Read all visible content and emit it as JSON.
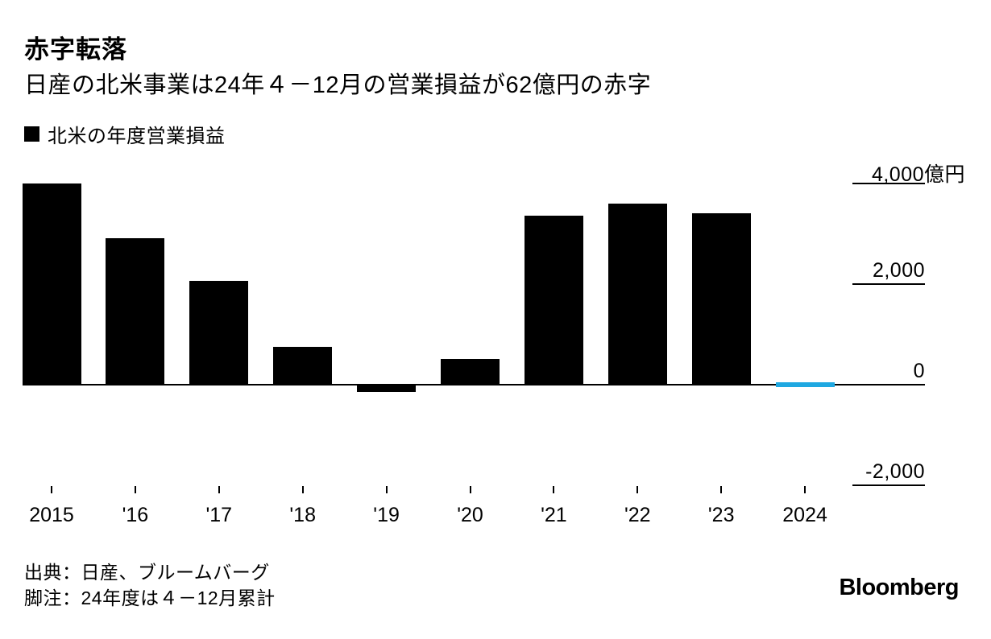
{
  "header": {
    "title": "赤字転落",
    "subtitle": "日産の北米事業は24年４－12月の営業損益が62億円の赤字"
  },
  "legend": {
    "label": "北米の年度営業損益"
  },
  "chart_data": {
    "type": "bar",
    "title": "赤字転落",
    "subtitle": "日産の北米事業は24年４－12月の営業損益が62億円の赤字",
    "series_name": "北米の年度営業損益",
    "categories": [
      "2015",
      "'16",
      "'17",
      "'18",
      "'19",
      "'20",
      "'21",
      "'22",
      "'23",
      "2024"
    ],
    "values": [
      4000,
      2900,
      2050,
      750,
      -150,
      500,
      3350,
      3600,
      3400,
      -62
    ],
    "unit": "億円",
    "xlabel": "",
    "ylabel": "",
    "ylim": [
      -2400,
      4200
    ],
    "grid": false,
    "legend_position": "top-left",
    "highlight_index": 9,
    "colors": {
      "bar": "#000000",
      "highlight": "#1fa8e1",
      "axis": "#000000"
    },
    "y_ticks": [
      {
        "text": "4,000",
        "suffix": "億円",
        "value": 4000
      },
      {
        "text": "2,000",
        "suffix": "",
        "value": 2000
      },
      {
        "text": "0",
        "suffix": "",
        "value": 0
      },
      {
        "text": "-2,000",
        "suffix": "",
        "value": -2000
      }
    ]
  },
  "footer": {
    "source": "出典：日産、ブルームバーグ",
    "note": "脚注：24年度は４－12月累計",
    "brand": "Bloomberg"
  }
}
